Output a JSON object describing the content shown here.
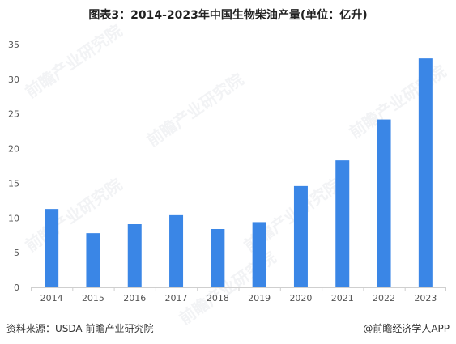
{
  "title": "图表3：2014-2023年中国生物柴油产量(单位：亿升)",
  "source": "资料来源：USDA 前瞻产业研究院",
  "brand": "@前瞻经济学人APP",
  "watermark": "前瞻产业研究院",
  "colors": {
    "bar": "#3a86e6",
    "axis": "#cfcfcf",
    "tick_text": "#555555"
  },
  "chart_data": {
    "type": "bar",
    "title": "图表3：2014-2023年中国生物柴油产量(单位：亿升)",
    "xlabel": "",
    "ylabel": "",
    "categories": [
      "2014",
      "2015",
      "2016",
      "2017",
      "2018",
      "2019",
      "2020",
      "2021",
      "2022",
      "2023"
    ],
    "values": [
      11.3,
      7.8,
      9.1,
      10.4,
      8.4,
      9.4,
      14.6,
      18.3,
      24.2,
      33.0
    ],
    "ylim": [
      0,
      35
    ],
    "yticks": [
      0,
      5,
      10,
      15,
      20,
      25,
      30,
      35
    ],
    "grid": false,
    "legend": "none"
  }
}
